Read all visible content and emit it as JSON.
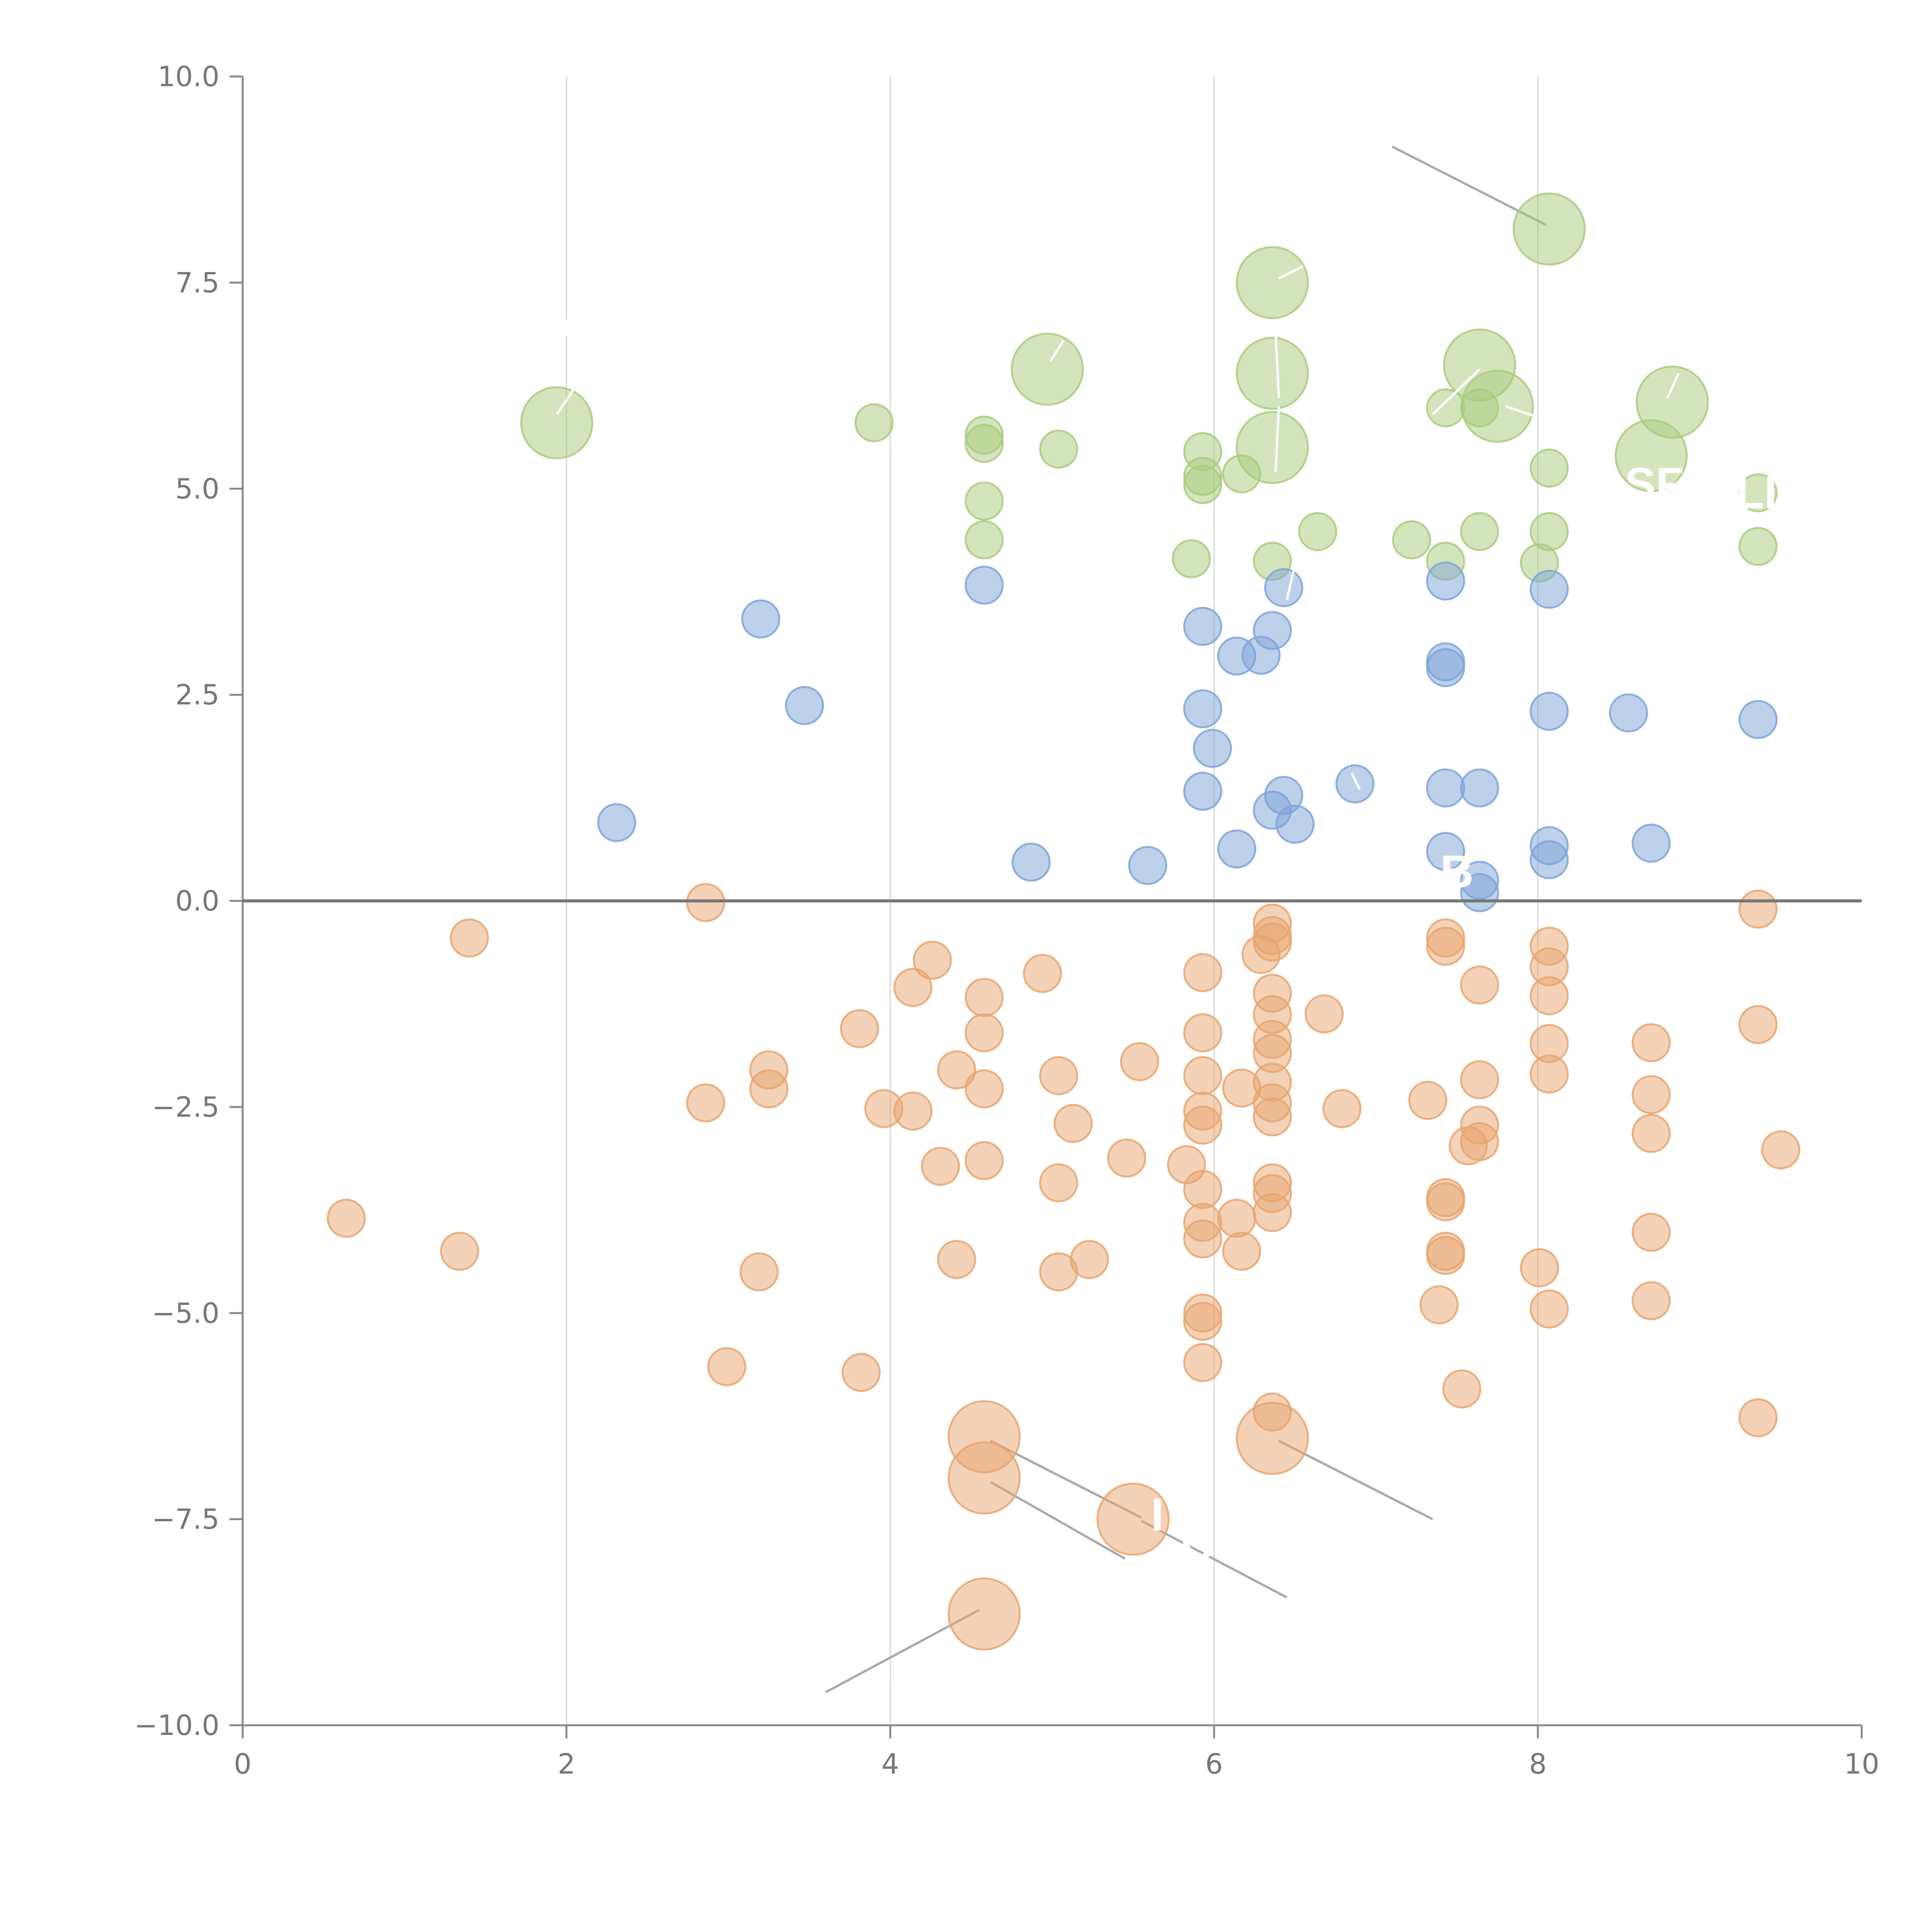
{
  "chart_data": {
    "type": "scatter",
    "title": "",
    "xlabel": "",
    "ylabel": "",
    "xlim": [
      0,
      10
    ],
    "ylim": [
      -10,
      10
    ],
    "x_ticks": [
      0,
      2,
      4,
      6,
      8,
      10
    ],
    "x_tick_labels": [
      "0",
      "2",
      "4",
      "6",
      "8",
      "10"
    ],
    "y_ticks": [
      10,
      7.5,
      5,
      2.5,
      0,
      -2.5,
      -5,
      -7.5,
      -10
    ],
    "y_tick_labels": [
      "10.0",
      "7.5",
      "5.0",
      "2.5",
      "0.0",
      "−2.5",
      "−5.0",
      "−7.5",
      "−10.0"
    ],
    "vertical_grid": true,
    "zero_line": true,
    "series": [
      {
        "name": "green",
        "color": "#a9cc7e",
        "points": [
          [
            1.94,
            5.8,
            1
          ],
          [
            4.97,
            6.45,
            1
          ],
          [
            6.36,
            7.5,
            1
          ],
          [
            6.36,
            6.4,
            1
          ],
          [
            6.36,
            5.5,
            1
          ],
          [
            7.64,
            6.5,
            1
          ],
          [
            7.75,
            6.0,
            1
          ],
          [
            8.07,
            8.15,
            1
          ],
          [
            8.83,
            6.05,
            1
          ],
          [
            8.7,
            5.4,
            1
          ],
          [
            3.9,
            5.8,
            0
          ],
          [
            4.58,
            5.65,
            0
          ],
          [
            4.58,
            5.55,
            0
          ],
          [
            5.04,
            5.48,
            0
          ],
          [
            4.58,
            4.85,
            0
          ],
          [
            4.58,
            4.38,
            0
          ],
          [
            5.93,
            5.45,
            0
          ],
          [
            5.93,
            5.15,
            0
          ],
          [
            5.93,
            5.05,
            0
          ],
          [
            6.17,
            5.18,
            0
          ],
          [
            5.86,
            4.15,
            0
          ],
          [
            6.36,
            4.12,
            0
          ],
          [
            6.64,
            4.48,
            0
          ],
          [
            7.22,
            4.38,
            0
          ],
          [
            7.43,
            5.98,
            0
          ],
          [
            7.64,
            5.98,
            0
          ],
          [
            7.43,
            4.12,
            0
          ],
          [
            7.64,
            4.48,
            0
          ],
          [
            8.07,
            5.25,
            0
          ],
          [
            8.07,
            4.48,
            0
          ],
          [
            8.01,
            4.1,
            0
          ],
          [
            9.36,
            4.95,
            0
          ],
          [
            9.36,
            4.3,
            0
          ]
        ]
      },
      {
        "name": "blue",
        "color": "#7ea4d8",
        "points": [
          [
            2.31,
            0.95,
            0
          ],
          [
            3.2,
            3.42,
            0
          ],
          [
            3.47,
            2.37,
            0
          ],
          [
            4.58,
            3.83,
            0
          ],
          [
            4.87,
            0.47,
            0
          ],
          [
            5.59,
            0.43,
            0
          ],
          [
            5.93,
            3.33,
            0
          ],
          [
            5.93,
            2.33,
            0
          ],
          [
            5.99,
            1.85,
            0
          ],
          [
            5.93,
            1.33,
            0
          ],
          [
            6.14,
            0.63,
            0
          ],
          [
            6.14,
            2.97,
            0
          ],
          [
            6.29,
            2.98,
            0
          ],
          [
            6.36,
            3.28,
            0
          ],
          [
            6.43,
            3.8,
            0
          ],
          [
            6.43,
            1.28,
            0
          ],
          [
            6.36,
            1.1,
            0
          ],
          [
            6.5,
            0.93,
            0
          ],
          [
            6.87,
            1.42,
            0
          ],
          [
            7.43,
            3.88,
            0
          ],
          [
            7.43,
            2.9,
            0
          ],
          [
            7.43,
            2.83,
            0
          ],
          [
            7.43,
            1.37,
            0
          ],
          [
            7.64,
            1.37,
            0
          ],
          [
            7.43,
            0.6,
            0
          ],
          [
            7.64,
            0.25,
            0
          ],
          [
            7.64,
            0.1,
            0
          ],
          [
            8.07,
            3.78,
            0
          ],
          [
            8.07,
            2.3,
            0
          ],
          [
            8.07,
            0.67,
            0
          ],
          [
            8.07,
            0.5,
            0
          ],
          [
            8.56,
            2.28,
            0
          ],
          [
            8.7,
            0.7,
            0
          ],
          [
            9.36,
            2.2,
            0
          ]
        ]
      },
      {
        "name": "orange",
        "color": "#e8a66f",
        "points": [
          [
            4.58,
            -6.5,
            1
          ],
          [
            4.58,
            -7.0,
            1
          ],
          [
            5.5,
            -7.5,
            1
          ],
          [
            6.36,
            -6.52,
            1
          ],
          [
            4.58,
            -8.65,
            1
          ],
          [
            0.64,
            -3.85,
            0
          ],
          [
            1.34,
            -4.25,
            0
          ],
          [
            1.4,
            -0.45,
            0
          ],
          [
            2.86,
            -0.02,
            0
          ],
          [
            2.86,
            -2.45,
            0
          ],
          [
            2.99,
            -5.65,
            0
          ],
          [
            3.19,
            -4.5,
            0
          ],
          [
            3.25,
            -2.05,
            0
          ],
          [
            3.25,
            -2.28,
            0
          ],
          [
            3.81,
            -1.55,
            0
          ],
          [
            3.82,
            -5.72,
            0
          ],
          [
            3.96,
            -2.52,
            0
          ],
          [
            4.14,
            -1.05,
            0
          ],
          [
            4.14,
            -2.55,
            0
          ],
          [
            4.26,
            -0.72,
            0
          ],
          [
            4.31,
            -3.22,
            0
          ],
          [
            4.41,
            -2.05,
            0
          ],
          [
            4.41,
            -4.35,
            0
          ],
          [
            4.58,
            -1.17,
            0
          ],
          [
            4.58,
            -1.6,
            0
          ],
          [
            4.58,
            -2.28,
            0
          ],
          [
            4.58,
            -3.15,
            0
          ],
          [
            4.94,
            -0.88,
            0
          ],
          [
            5.04,
            -2.12,
            0
          ],
          [
            5.04,
            -3.42,
            0
          ],
          [
            5.04,
            -4.5,
            0
          ],
          [
            5.13,
            -2.7,
            0
          ],
          [
            5.23,
            -4.35,
            0
          ],
          [
            5.46,
            -3.12,
            0
          ],
          [
            5.54,
            -1.95,
            0
          ],
          [
            5.83,
            -3.2,
            0
          ],
          [
            5.93,
            -0.87,
            0
          ],
          [
            5.93,
            -1.6,
            0
          ],
          [
            5.93,
            -2.12,
            0
          ],
          [
            5.93,
            -2.55,
            0
          ],
          [
            5.93,
            -2.72,
            0
          ],
          [
            5.93,
            -3.5,
            0
          ],
          [
            5.93,
            -3.9,
            0
          ],
          [
            5.93,
            -4.1,
            0
          ],
          [
            5.93,
            -5.0,
            0
          ],
          [
            5.93,
            -5.1,
            0
          ],
          [
            5.93,
            -5.6,
            0
          ],
          [
            6.14,
            -3.85,
            0
          ],
          [
            6.17,
            -2.27,
            0
          ],
          [
            6.17,
            -4.25,
            0
          ],
          [
            6.29,
            -0.65,
            0
          ],
          [
            6.36,
            -0.27,
            0
          ],
          [
            6.36,
            -0.42,
            0
          ],
          [
            6.36,
            -0.5,
            0
          ],
          [
            6.36,
            -1.12,
            0
          ],
          [
            6.36,
            -1.38,
            0
          ],
          [
            6.36,
            -1.68,
            0
          ],
          [
            6.36,
            -1.85,
            0
          ],
          [
            6.36,
            -2.2,
            0
          ],
          [
            6.36,
            -2.45,
            0
          ],
          [
            6.36,
            -2.62,
            0
          ],
          [
            6.36,
            -3.42,
            0
          ],
          [
            6.36,
            -3.55,
            0
          ],
          [
            6.36,
            -3.78,
            0
          ],
          [
            6.36,
            -6.2,
            0
          ],
          [
            6.68,
            -1.37,
            0
          ],
          [
            6.79,
            -2.52,
            0
          ],
          [
            7.32,
            -2.42,
            0
          ],
          [
            7.43,
            -0.45,
            0
          ],
          [
            7.43,
            -0.55,
            0
          ],
          [
            7.43,
            -3.6,
            0
          ],
          [
            7.43,
            -3.65,
            0
          ],
          [
            7.43,
            -4.25,
            0
          ],
          [
            7.43,
            -4.3,
            0
          ],
          [
            7.39,
            -4.9,
            0
          ],
          [
            7.53,
            -5.92,
            0
          ],
          [
            7.64,
            -1.02,
            0
          ],
          [
            7.64,
            -2.17,
            0
          ],
          [
            7.64,
            -2.72,
            0
          ],
          [
            7.64,
            -2.92,
            0
          ],
          [
            7.57,
            -2.97,
            0
          ],
          [
            8.07,
            -0.55,
            0
          ],
          [
            8.07,
            -0.8,
            0
          ],
          [
            8.07,
            -1.15,
            0
          ],
          [
            8.07,
            -1.73,
            0
          ],
          [
            8.07,
            -2.1,
            0
          ],
          [
            8.01,
            -4.45,
            0
          ],
          [
            8.07,
            -4.95,
            0
          ],
          [
            8.7,
            -1.72,
            0
          ],
          [
            8.7,
            -2.35,
            0
          ],
          [
            8.7,
            -2.82,
            0
          ],
          [
            8.7,
            -4.02,
            0
          ],
          [
            8.7,
            -4.85,
            0
          ],
          [
            9.36,
            -0.1,
            0
          ],
          [
            9.36,
            -1.5,
            0
          ],
          [
            9.5,
            -3.02,
            0
          ],
          [
            9.36,
            -6.27,
            0
          ]
        ]
      }
    ],
    "annotations": [
      {
        "text": "SF",
        "x": 8.72,
        "y": 5.05
      },
      {
        "text": "LI",
        "x": 9.35,
        "y": 4.95
      },
      {
        "text": "B",
        "x": 7.5,
        "y": 0.35
      },
      {
        "text": "I",
        "x": 5.65,
        "y": -7.45
      },
      {
        "text": "C",
        "x": 5.9,
        "y": -7.8
      }
    ],
    "leader_lines_gray": [
      [
        [
          7.1,
          9.15
        ],
        [
          8.05,
          8.2
        ]
      ],
      [
        [
          4.62,
          -6.55
        ],
        [
          5.55,
          -7.48
        ]
      ],
      [
        [
          4.62,
          -7.05
        ],
        [
          5.45,
          -7.98
        ]
      ],
      [
        [
          5.55,
          -7.52
        ],
        [
          6.45,
          -8.45
        ]
      ],
      [
        [
          6.4,
          -6.55
        ],
        [
          7.35,
          -7.5
        ]
      ],
      [
        [
          4.55,
          -8.6
        ],
        [
          3.6,
          -9.6
        ]
      ]
    ],
    "leader_lines_white": [
      [
        [
          1.94,
          5.9
        ],
        [
          2.06,
          6.25
        ]
      ],
      [
        [
          4.99,
          6.55
        ],
        [
          5.07,
          6.8
        ]
      ],
      [
        [
          6.4,
          7.55
        ],
        [
          6.55,
          7.7
        ]
      ],
      [
        [
          6.4,
          6.1
        ],
        [
          6.38,
          6.9
        ]
      ],
      [
        [
          6.38,
          5.2
        ],
        [
          6.4,
          6.0
        ]
      ],
      [
        [
          7.35,
          5.9
        ],
        [
          7.64,
          6.45
        ]
      ],
      [
        [
          7.8,
          6.0
        ],
        [
          7.98,
          5.88
        ]
      ],
      [
        [
          8.8,
          6.1
        ],
        [
          8.87,
          6.4
        ]
      ],
      [
        [
          6.45,
          3.65
        ],
        [
          6.49,
          4.0
        ]
      ],
      [
        [
          6.85,
          1.55
        ],
        [
          6.9,
          1.35
        ]
      ],
      [
        [
          2.0,
          7.05
        ],
        [
          2.0,
          6.85
        ]
      ],
      [
        [
          3.99,
          -9.3
        ],
        [
          3.99,
          -9.5
        ]
      ]
    ],
    "colors": {
      "axis": "#888888",
      "grid": "#dddddd",
      "zero_line": "#777777",
      "leader_gray": "#aaaaaa",
      "leader_white": "#ffffff"
    }
  }
}
